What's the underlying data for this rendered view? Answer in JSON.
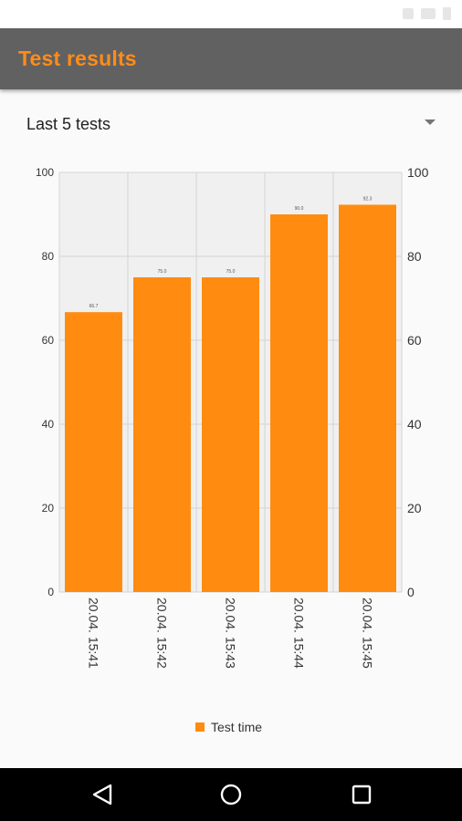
{
  "app": {
    "title": "Test results"
  },
  "selector": {
    "selected": "Last 5 tests"
  },
  "colors": {
    "accent": "#ff8c1a",
    "bar": "#ff8c11",
    "appbar": "#616161"
  },
  "icons": {
    "dropdown": "chevron-down-icon",
    "back": "back-triangle-icon",
    "home": "home-circle-icon",
    "recents": "recents-square-icon"
  },
  "chart_data": {
    "type": "bar",
    "categories": [
      "20.04. 15:41",
      "20.04. 15:42",
      "20.04. 15:43",
      "20.04. 15:44",
      "20.04. 15:45"
    ],
    "series": [
      {
        "name": "Test time",
        "values": [
          66.7,
          75.0,
          75.0,
          90.0,
          92.3
        ]
      }
    ],
    "data_labels": [
      "66.7",
      "75.0",
      "75.0",
      "90.0",
      "92.3"
    ],
    "y_ticks": [
      "0",
      "20",
      "40",
      "60",
      "80",
      "100"
    ],
    "ylim": [
      0,
      100
    ],
    "dual_y_axis": true,
    "grid": true,
    "legend_position": "bottom"
  }
}
